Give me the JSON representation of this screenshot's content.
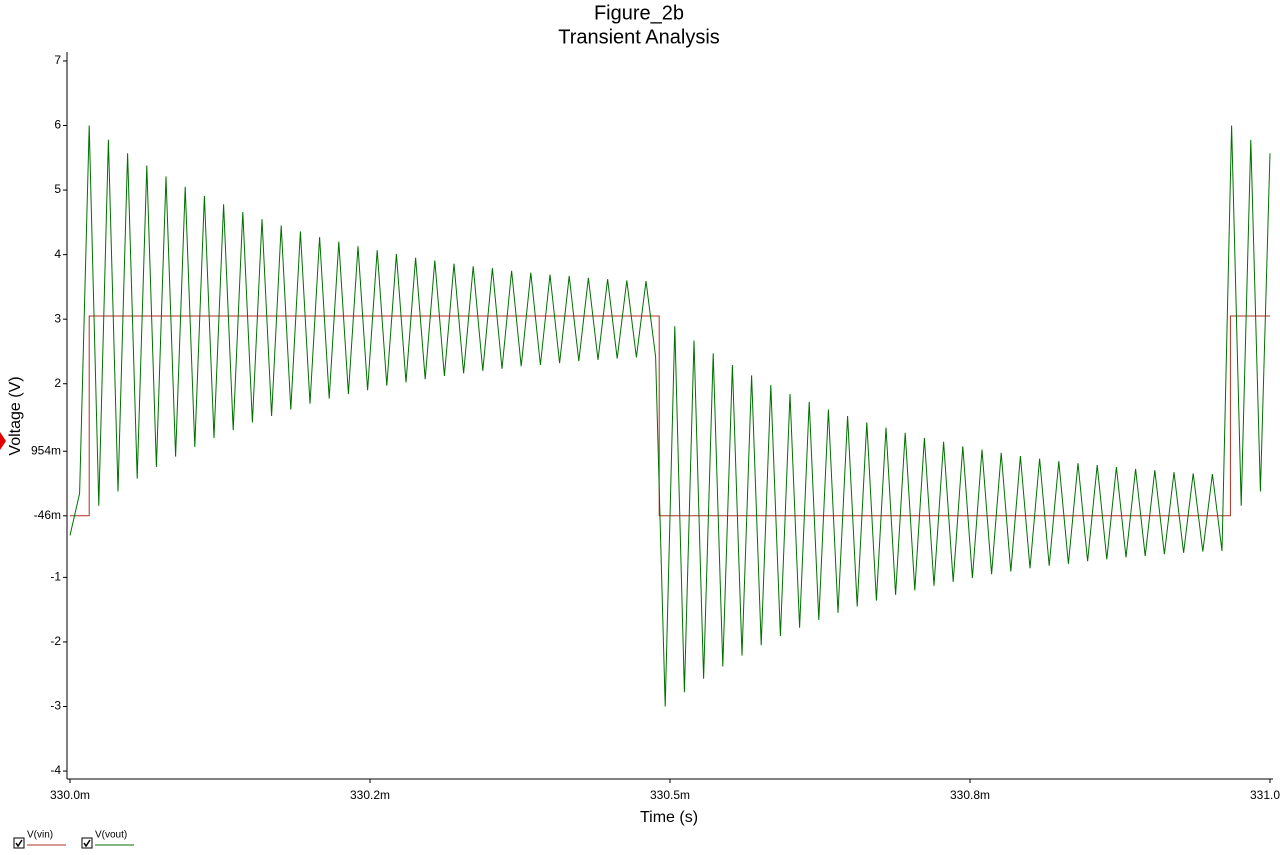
{
  "chart_data": {
    "type": "line",
    "title": "Figure_2b",
    "subtitle": "Transient Analysis",
    "x_label": "Time (s)",
    "y_label": "Voltage (V)",
    "xlim": [
      0.33,
      0.331
    ],
    "ylim": [
      -4.1,
      7.1
    ],
    "xticks": [
      {
        "value": 0.33,
        "label": "330.0m"
      },
      {
        "value": 0.33025,
        "label": "330.2m"
      },
      {
        "value": 0.3305,
        "label": "330.5m"
      },
      {
        "value": 0.33075,
        "label": "330.8m"
      },
      {
        "value": 0.331,
        "label": "331.0m"
      }
    ],
    "yticks": [
      7,
      6,
      5,
      4,
      3,
      2,
      {
        "value": 0.954,
        "label": "954m"
      },
      {
        "value": -0.046,
        "label": "-46m"
      },
      -1,
      -2,
      -3,
      -4
    ],
    "grid": false,
    "series": [
      {
        "name": "V(vin)",
        "color": "#b03020",
        "x": [
          0.33,
          0.330016,
          0.330016,
          0.330491,
          0.330491,
          0.330967,
          0.330967,
          0.331
        ],
        "values": [
          -0.046,
          -0.046,
          3.05,
          3.05,
          -0.046,
          -0.046,
          3.05,
          3.05
        ]
      },
      {
        "name": "V(vout)",
        "color": "#007000",
        "x": [
          0.33,
          0.330008,
          0.330016,
          0.330024,
          0.330032,
          0.33004,
          0.330048,
          0.330056,
          0.330064,
          0.330072,
          0.33008,
          0.330088,
          0.330096,
          0.330104,
          0.330112,
          0.33012,
          0.330128,
          0.330136,
          0.330144,
          0.330152,
          0.33016,
          0.330168,
          0.330176,
          0.330184,
          0.330192,
          0.3302,
          0.330208,
          0.330216,
          0.330224,
          0.330232,
          0.33024,
          0.330248,
          0.330256,
          0.330264,
          0.330272,
          0.33028,
          0.330288,
          0.330296,
          0.330304,
          0.330312,
          0.33032,
          0.330328,
          0.330336,
          0.330344,
          0.330352,
          0.33036,
          0.330368,
          0.330376,
          0.330384,
          0.330392,
          0.3304,
          0.330408,
          0.330416,
          0.330424,
          0.330432,
          0.33044,
          0.330448,
          0.330456,
          0.330464,
          0.330472,
          0.33048,
          0.330488,
          0.330496,
          0.330504,
          0.330512,
          0.33052,
          0.330528,
          0.330536,
          0.330544,
          0.330552,
          0.33056,
          0.330568,
          0.330576,
          0.330584,
          0.330592,
          0.3306,
          0.330608,
          0.330616,
          0.330624,
          0.330632,
          0.33064,
          0.330648,
          0.330656,
          0.330664,
          0.330672,
          0.33068,
          0.330688,
          0.330696,
          0.330704,
          0.330712,
          0.33072,
          0.330728,
          0.330736,
          0.330744,
          0.330752,
          0.33076,
          0.330768,
          0.330776,
          0.330784,
          0.330792,
          0.3308,
          0.330808,
          0.330816,
          0.330824,
          0.330832,
          0.33084,
          0.330848,
          0.330856,
          0.330864,
          0.330872,
          0.33088,
          0.330888,
          0.330896,
          0.330904,
          0.330912,
          0.33092,
          0.330928,
          0.330936,
          0.330944,
          0.330952,
          0.33096,
          0.330968,
          0.330976,
          0.330984,
          0.330992,
          0.331
        ],
        "values": [
          -0.35,
          0.3,
          6.0,
          0.11,
          5.78,
          0.33,
          5.57,
          0.53,
          5.38,
          0.71,
          5.21,
          0.87,
          5.05,
          1.02,
          4.91,
          1.16,
          4.78,
          1.28,
          4.66,
          1.4,
          4.55,
          1.5,
          4.45,
          1.6,
          4.36,
          1.69,
          4.27,
          1.77,
          4.2,
          1.84,
          4.13,
          1.9,
          4.07,
          1.97,
          4.01,
          2.02,
          3.95,
          2.07,
          3.91,
          2.12,
          3.86,
          2.16,
          3.82,
          2.2,
          3.79,
          2.23,
          3.75,
          2.27,
          3.72,
          2.29,
          3.69,
          2.32,
          3.67,
          2.35,
          3.64,
          2.37,
          3.62,
          2.39,
          3.6,
          2.41,
          3.59,
          2.42,
          -3.0,
          2.89,
          -2.78,
          2.67,
          -2.57,
          2.47,
          -2.38,
          2.29,
          -2.21,
          2.13,
          -2.05,
          1.98,
          -1.91,
          1.84,
          -1.78,
          1.72,
          -1.66,
          1.6,
          -1.55,
          1.5,
          -1.45,
          1.4,
          -1.36,
          1.32,
          -1.27,
          1.24,
          -1.2,
          1.16,
          -1.13,
          1.1,
          -1.07,
          1.03,
          -1.01,
          0.98,
          -0.95,
          0.93,
          -0.91,
          0.88,
          -0.86,
          0.84,
          -0.82,
          0.8,
          -0.79,
          0.77,
          -0.75,
          0.74,
          -0.72,
          0.71,
          -0.69,
          0.68,
          -0.67,
          0.66,
          -0.64,
          0.63,
          -0.62,
          0.61,
          -0.6,
          0.6,
          -0.59,
          6.0,
          0.11,
          5.78,
          0.33,
          5.57
        ]
      }
    ]
  }
}
